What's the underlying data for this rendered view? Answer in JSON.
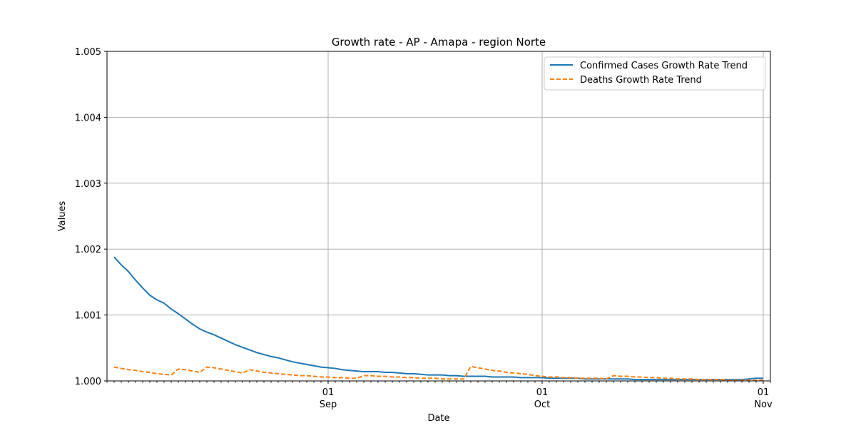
{
  "chart_data": {
    "type": "line",
    "title": "Growth rate - AP - Amapa - region Norte",
    "xlabel": "Date",
    "ylabel": "Values",
    "ylim": [
      1.0,
      1.005
    ],
    "xlim": [
      "2020-08-01",
      "2020-11-02"
    ],
    "y_ticks": [
      "1.000",
      "1.001",
      "1.002",
      "1.003",
      "1.004",
      "1.005"
    ],
    "x_major_ticks": [
      {
        "date": "2020-09-01",
        "day": "01",
        "month": "Sep"
      },
      {
        "date": "2020-10-01",
        "day": "01",
        "month": "Oct"
      },
      {
        "date": "2020-11-01",
        "day": "01",
        "month": "Nov"
      }
    ],
    "grid": true,
    "legend_position": "top-right",
    "series": [
      {
        "name": "Confirmed Cases Growth Rate Trend",
        "color": "#1f77b4",
        "style": "solid",
        "points": [
          [
            "2020-08-02",
            1.00188
          ],
          [
            "2020-08-03",
            1.00176
          ],
          [
            "2020-08-04",
            1.00166
          ],
          [
            "2020-08-05",
            1.00153
          ],
          [
            "2020-08-06",
            1.00141
          ],
          [
            "2020-08-07",
            1.0013
          ],
          [
            "2020-08-08",
            1.00123
          ],
          [
            "2020-08-09",
            1.00118
          ],
          [
            "2020-08-10",
            1.00109
          ],
          [
            "2020-08-11",
            1.00102
          ],
          [
            "2020-08-12",
            1.00094
          ],
          [
            "2020-08-13",
            1.00086
          ],
          [
            "2020-08-14",
            1.00079
          ],
          [
            "2020-08-15",
            1.00074
          ],
          [
            "2020-08-16",
            1.0007
          ],
          [
            "2020-08-17",
            1.00065
          ],
          [
            "2020-08-18",
            1.0006
          ],
          [
            "2020-08-19",
            1.00055
          ],
          [
            "2020-08-20",
            1.00051
          ],
          [
            "2020-08-21",
            1.00047
          ],
          [
            "2020-08-22",
            1.00043
          ],
          [
            "2020-08-23",
            1.0004
          ],
          [
            "2020-08-24",
            1.00037
          ],
          [
            "2020-08-25",
            1.00035
          ],
          [
            "2020-08-26",
            1.00032
          ],
          [
            "2020-08-27",
            1.00029
          ],
          [
            "2020-08-28",
            1.00027
          ],
          [
            "2020-08-29",
            1.00025
          ],
          [
            "2020-08-30",
            1.00023
          ],
          [
            "2020-08-31",
            1.00021
          ],
          [
            "2020-09-01",
            1.0002
          ],
          [
            "2020-09-02",
            1.00019
          ],
          [
            "2020-09-03",
            1.00017
          ],
          [
            "2020-09-04",
            1.00016
          ],
          [
            "2020-09-05",
            1.00015
          ],
          [
            "2020-09-06",
            1.00014
          ],
          [
            "2020-09-07",
            1.00014
          ],
          [
            "2020-09-08",
            1.00014
          ],
          [
            "2020-09-09",
            1.00013
          ],
          [
            "2020-09-10",
            1.00013
          ],
          [
            "2020-09-11",
            1.00012
          ],
          [
            "2020-09-12",
            1.00011
          ],
          [
            "2020-09-13",
            1.00011
          ],
          [
            "2020-09-14",
            1.0001
          ],
          [
            "2020-09-15",
            1.00009
          ],
          [
            "2020-09-16",
            1.00009
          ],
          [
            "2020-09-17",
            1.00009
          ],
          [
            "2020-09-18",
            1.00008
          ],
          [
            "2020-09-19",
            1.00008
          ],
          [
            "2020-09-20",
            1.00007
          ],
          [
            "2020-09-21",
            1.00007
          ],
          [
            "2020-09-22",
            1.00007
          ],
          [
            "2020-09-23",
            1.00007
          ],
          [
            "2020-09-24",
            1.00006
          ],
          [
            "2020-09-25",
            1.00006
          ],
          [
            "2020-09-26",
            1.00006
          ],
          [
            "2020-09-27",
            1.00006
          ],
          [
            "2020-09-28",
            1.00005
          ],
          [
            "2020-09-29",
            1.00005
          ],
          [
            "2020-09-30",
            1.00005
          ],
          [
            "2020-10-01",
            1.00005
          ],
          [
            "2020-10-02",
            1.00004
          ],
          [
            "2020-10-03",
            1.00004
          ],
          [
            "2020-10-04",
            1.00004
          ],
          [
            "2020-10-05",
            1.00004
          ],
          [
            "2020-10-06",
            1.00004
          ],
          [
            "2020-10-07",
            1.00003
          ],
          [
            "2020-10-08",
            1.00003
          ],
          [
            "2020-10-09",
            1.00003
          ],
          [
            "2020-10-10",
            1.00003
          ],
          [
            "2020-10-11",
            1.00003
          ],
          [
            "2020-10-12",
            1.00003
          ],
          [
            "2020-10-13",
            1.00003
          ],
          [
            "2020-10-14",
            1.00002
          ],
          [
            "2020-10-15",
            1.00002
          ],
          [
            "2020-10-16",
            1.00002
          ],
          [
            "2020-10-17",
            1.00002
          ],
          [
            "2020-10-18",
            1.00002
          ],
          [
            "2020-10-19",
            1.00002
          ],
          [
            "2020-10-20",
            1.00002
          ],
          [
            "2020-10-21",
            1.00002
          ],
          [
            "2020-10-22",
            1.00002
          ],
          [
            "2020-10-23",
            1.00002
          ],
          [
            "2020-10-24",
            1.00002
          ],
          [
            "2020-10-25",
            1.00002
          ],
          [
            "2020-10-26",
            1.00002
          ],
          [
            "2020-10-27",
            1.00002
          ],
          [
            "2020-10-28",
            1.00002
          ],
          [
            "2020-10-29",
            1.00002
          ],
          [
            "2020-10-30",
            1.00003
          ],
          [
            "2020-10-31",
            1.00004
          ],
          [
            "2020-11-01",
            1.00004
          ]
        ]
      },
      {
        "name": "Deaths Growth Rate Trend",
        "color": "#ff7f0e",
        "style": "dashed",
        "points": [
          [
            "2020-08-02",
            1.00021
          ],
          [
            "2020-08-03",
            1.00019
          ],
          [
            "2020-08-04",
            1.00017
          ],
          [
            "2020-08-05",
            1.00016
          ],
          [
            "2020-08-06",
            1.00014
          ],
          [
            "2020-08-07",
            1.00013
          ],
          [
            "2020-08-08",
            1.00011
          ],
          [
            "2020-08-09",
            1.0001
          ],
          [
            "2020-08-10",
            1.00009
          ],
          [
            "2020-08-11",
            1.00018
          ],
          [
            "2020-08-12",
            1.00017
          ],
          [
            "2020-08-13",
            1.00015
          ],
          [
            "2020-08-14",
            1.00013
          ],
          [
            "2020-08-15",
            1.00021
          ],
          [
            "2020-08-16",
            1.0002
          ],
          [
            "2020-08-17",
            1.00018
          ],
          [
            "2020-08-18",
            1.00016
          ],
          [
            "2020-08-19",
            1.00014
          ],
          [
            "2020-08-20",
            1.00012
          ],
          [
            "2020-08-21",
            1.00017
          ],
          [
            "2020-08-22",
            1.00015
          ],
          [
            "2020-08-23",
            1.00013
          ],
          [
            "2020-08-24",
            1.00012
          ],
          [
            "2020-08-25",
            1.00011
          ],
          [
            "2020-08-26",
            1.0001
          ],
          [
            "2020-08-27",
            1.00009
          ],
          [
            "2020-08-28",
            1.00008
          ],
          [
            "2020-08-29",
            1.00008
          ],
          [
            "2020-08-30",
            1.00007
          ],
          [
            "2020-08-31",
            1.00006
          ],
          [
            "2020-09-01",
            1.00006
          ],
          [
            "2020-09-02",
            1.00005
          ],
          [
            "2020-09-03",
            1.00005
          ],
          [
            "2020-09-04",
            1.00004
          ],
          [
            "2020-09-05",
            1.00004
          ],
          [
            "2020-09-06",
            1.00008
          ],
          [
            "2020-09-07",
            1.00008
          ],
          [
            "2020-09-08",
            1.00007
          ],
          [
            "2020-09-09",
            1.00007
          ],
          [
            "2020-09-10",
            1.00006
          ],
          [
            "2020-09-11",
            1.00006
          ],
          [
            "2020-09-12",
            1.00005
          ],
          [
            "2020-09-13",
            1.00005
          ],
          [
            "2020-09-14",
            1.00004
          ],
          [
            "2020-09-15",
            1.00004
          ],
          [
            "2020-09-16",
            1.00004
          ],
          [
            "2020-09-17",
            1.00003
          ],
          [
            "2020-09-18",
            1.00003
          ],
          [
            "2020-09-19",
            1.00003
          ],
          [
            "2020-09-20",
            1.00003
          ],
          [
            "2020-09-21",
            1.00022
          ],
          [
            "2020-09-22",
            1.0002
          ],
          [
            "2020-09-23",
            1.00018
          ],
          [
            "2020-09-24",
            1.00016
          ],
          [
            "2020-09-25",
            1.00015
          ],
          [
            "2020-09-26",
            1.00013
          ],
          [
            "2020-09-27",
            1.00012
          ],
          [
            "2020-09-28",
            1.00011
          ],
          [
            "2020-09-29",
            1.0001
          ],
          [
            "2020-09-30",
            1.00008
          ],
          [
            "2020-10-01",
            1.00007
          ],
          [
            "2020-10-02",
            1.00006
          ],
          [
            "2020-10-03",
            1.00006
          ],
          [
            "2020-10-04",
            1.00005
          ],
          [
            "2020-10-05",
            1.00005
          ],
          [
            "2020-10-06",
            1.00004
          ],
          [
            "2020-10-07",
            1.00004
          ],
          [
            "2020-10-08",
            1.00004
          ],
          [
            "2020-10-09",
            1.00004
          ],
          [
            "2020-10-10",
            1.00003
          ],
          [
            "2020-10-11",
            1.00008
          ],
          [
            "2020-10-12",
            1.00007
          ],
          [
            "2020-10-13",
            1.00007
          ],
          [
            "2020-10-14",
            1.00006
          ],
          [
            "2020-10-15",
            1.00006
          ],
          [
            "2020-10-16",
            1.00005
          ],
          [
            "2020-10-17",
            1.00005
          ],
          [
            "2020-10-18",
            1.00004
          ],
          [
            "2020-10-19",
            1.00004
          ],
          [
            "2020-10-20",
            1.00003
          ],
          [
            "2020-10-21",
            1.00003
          ],
          [
            "2020-10-22",
            1.00003
          ],
          [
            "2020-10-23",
            1.00002
          ],
          [
            "2020-10-24",
            1.00002
          ],
          [
            "2020-10-25",
            1.00002
          ],
          [
            "2020-10-26",
            1.00002
          ],
          [
            "2020-10-27",
            1.00001
          ],
          [
            "2020-10-28",
            1.00001
          ],
          [
            "2020-10-29",
            1.00001
          ],
          [
            "2020-10-30",
            1.00001
          ],
          [
            "2020-10-31",
            1.00001
          ],
          [
            "2020-11-01",
            1.00001
          ]
        ]
      }
    ]
  }
}
